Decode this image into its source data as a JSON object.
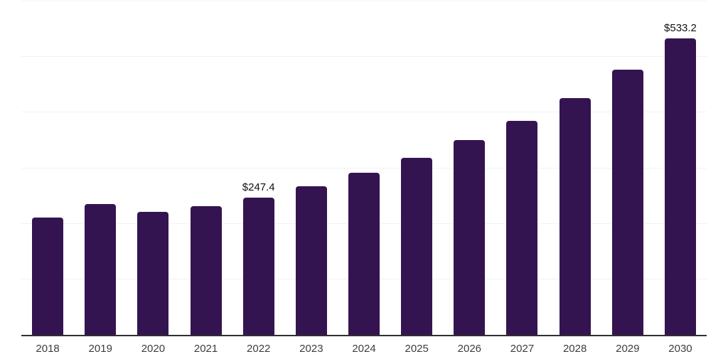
{
  "chart_data": {
    "type": "bar",
    "title": "",
    "xlabel": "",
    "ylabel": "",
    "categories": [
      "2018",
      "2019",
      "2020",
      "2021",
      "2022",
      "2023",
      "2024",
      "2025",
      "2026",
      "2027",
      "2028",
      "2029",
      "2030"
    ],
    "values": [
      210.5,
      236.0,
      221.0,
      232.0,
      247.4,
      268.0,
      292.0,
      319.0,
      350.0,
      385.5,
      426.5,
      477.5,
      533.2
    ],
    "point_labels": [
      "",
      "",
      "",
      "",
      "$247.4",
      "",
      "",
      "",
      "",
      "",
      "",
      "",
      "$533.2"
    ],
    "ylim": [
      0,
      600
    ],
    "gridline_values": [
      100,
      200,
      300,
      400,
      500,
      600
    ],
    "grid": true,
    "legend": false,
    "bar_color": "#341450",
    "axis_color": "#2f2f2f",
    "grid_color": "#f2f2f2",
    "tick_label_color": "#3d3d3d",
    "value_label_color": "#111111"
  }
}
